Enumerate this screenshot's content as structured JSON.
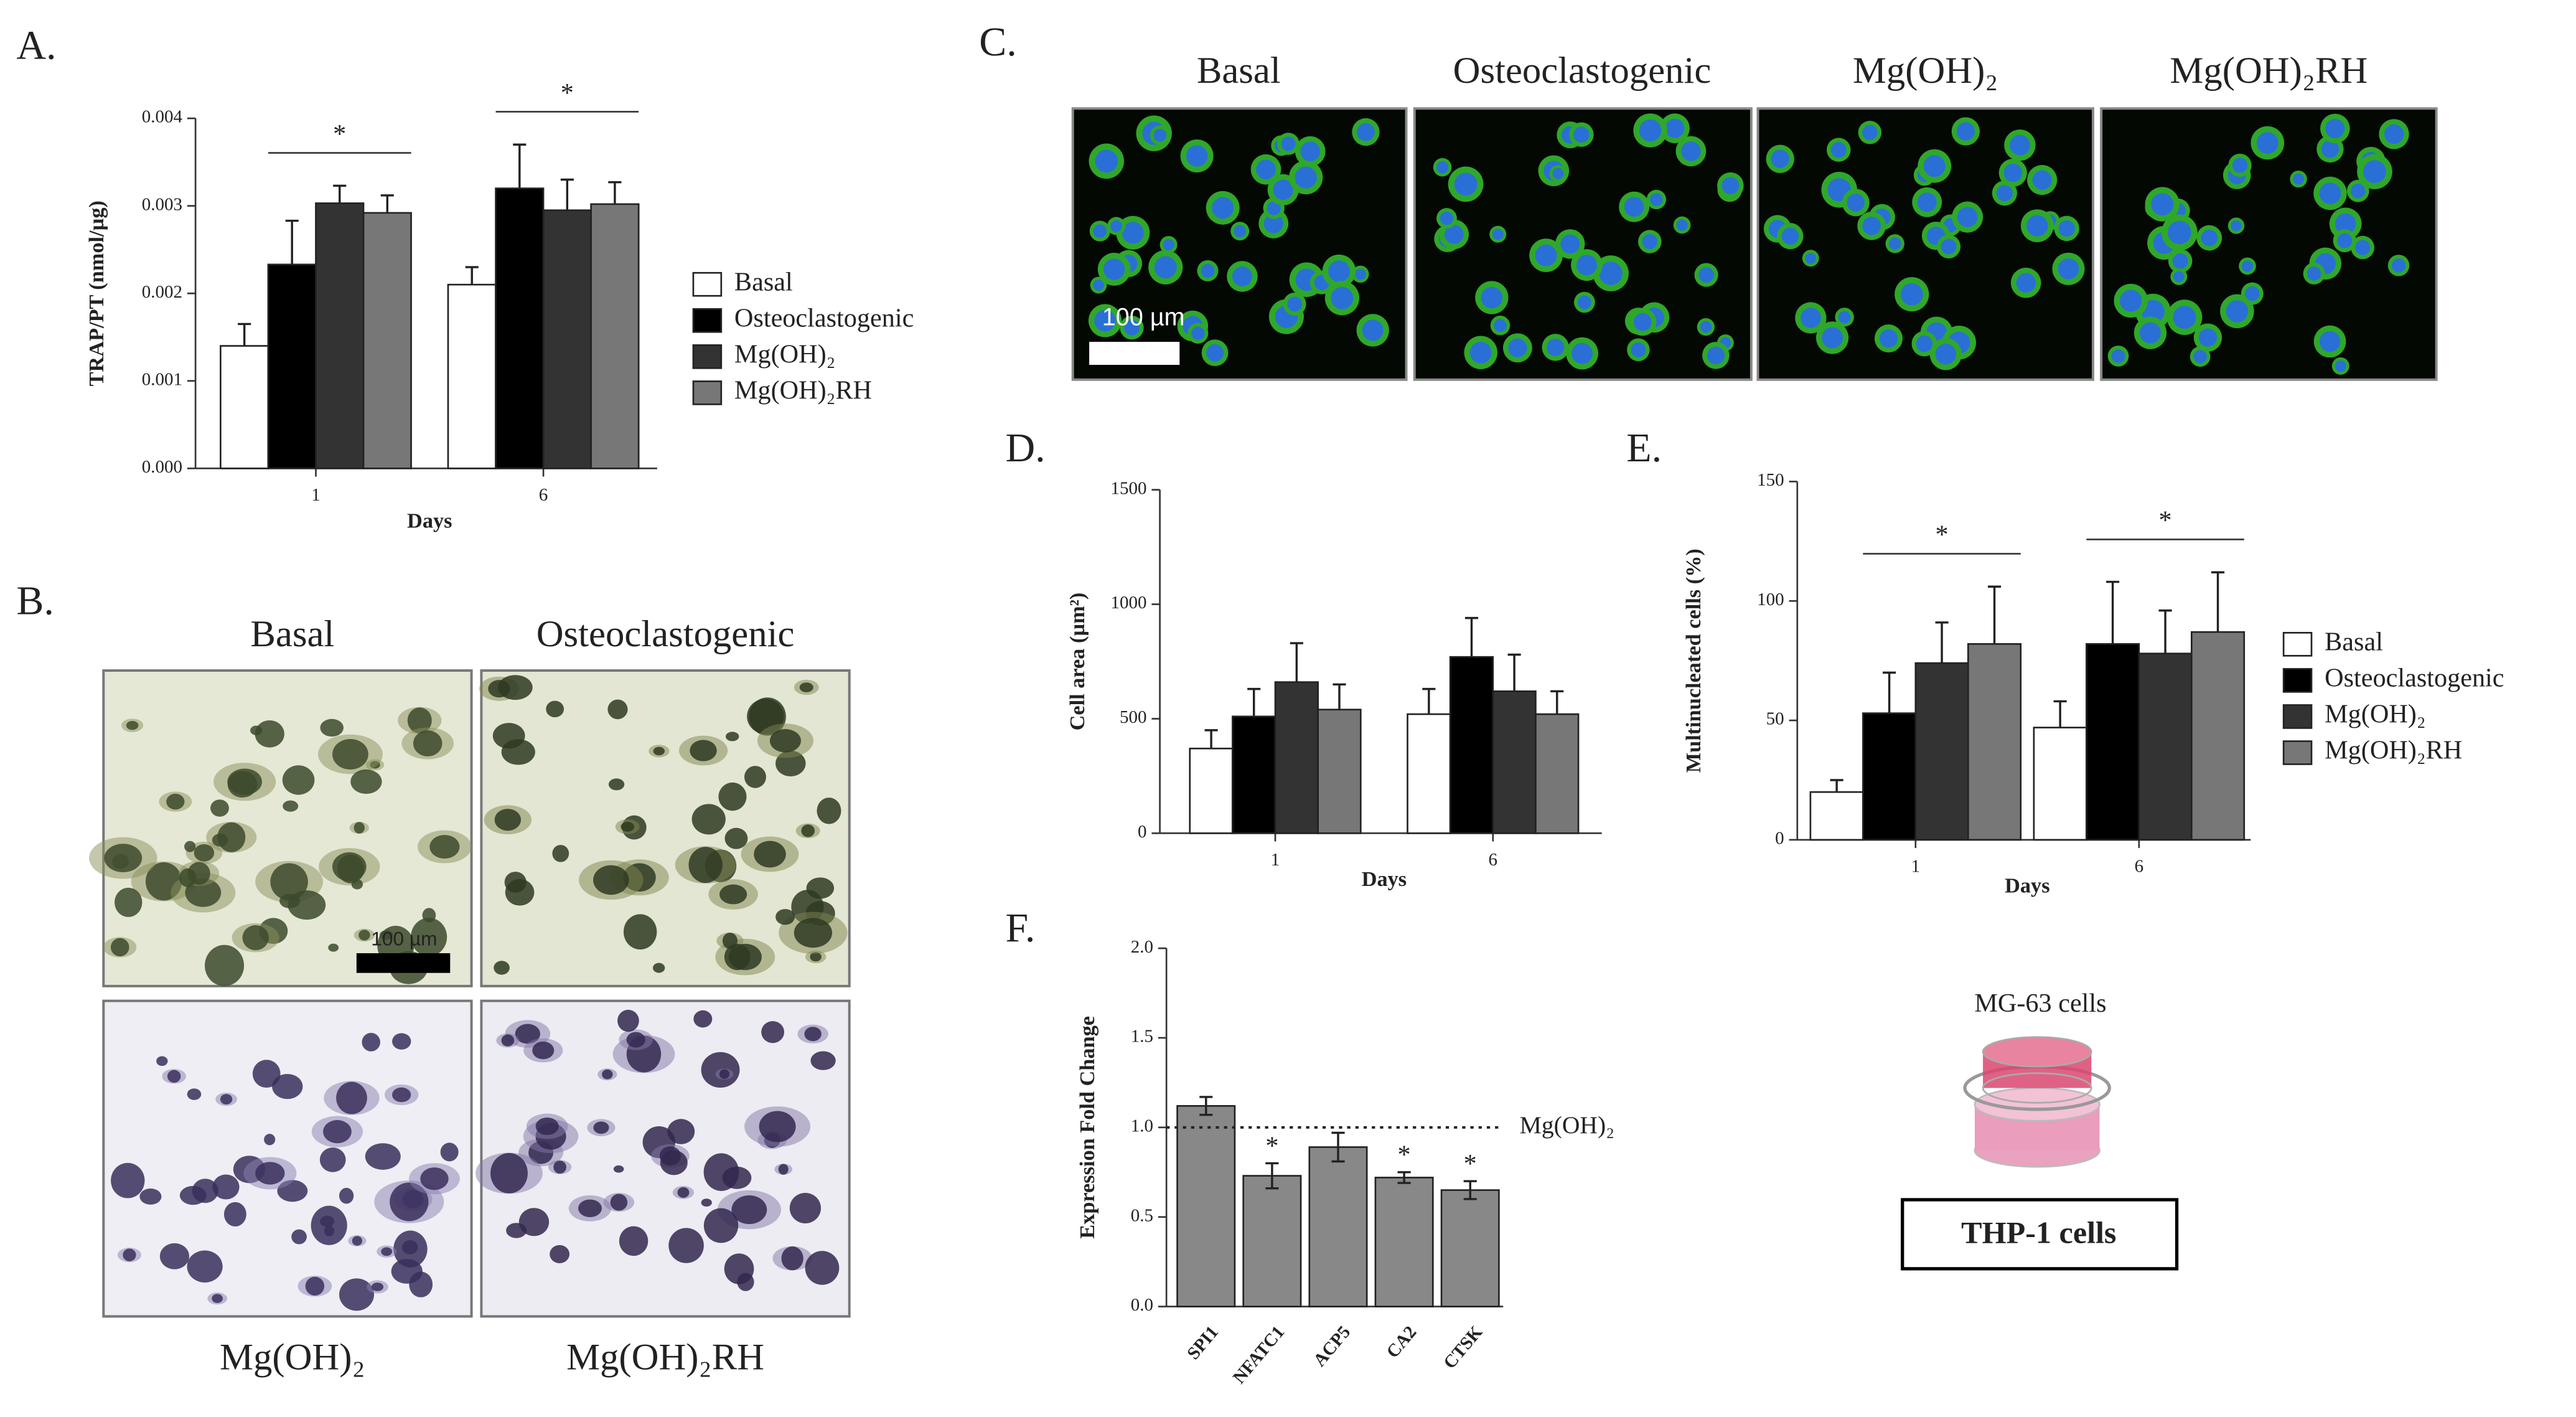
{
  "chart_data": [
    {
      "type": "bar",
      "label": "A.",
      "ylabel": "TRAP/PT (nmol/µg)",
      "xlabel": "Days",
      "categories": [
        "1",
        "6"
      ],
      "series": [
        {
          "name": "Basal",
          "color": "#ffffff",
          "values": [
            0.0014,
            0.0021
          ],
          "errors": [
            0.00025,
            0.0002
          ]
        },
        {
          "name": "Osteoclastogenic",
          "color": "#000000",
          "values": [
            0.00233,
            0.0032
          ],
          "errors": [
            0.0005,
            0.0005
          ]
        },
        {
          "name": "Mg(OH)₂",
          "color": "#333333",
          "values": [
            0.00303,
            0.00295
          ],
          "errors": [
            0.0002,
            0.00035
          ]
        },
        {
          "name": "Mg(OH)₂RH",
          "color": "#777777",
          "values": [
            0.00292,
            0.00302
          ],
          "errors": [
            0.0002,
            0.00025
          ]
        }
      ],
      "error_bars": "upper",
      "ylim": [
        0,
        0.004
      ],
      "yticks": [
        {
          "value": 0,
          "label": "0.000"
        },
        {
          "value": 0.001,
          "label": "0.001"
        },
        {
          "value": 0.002,
          "label": "0.002"
        },
        {
          "value": 0.003,
          "label": "0.003"
        },
        {
          "value": 0.004,
          "label": "0.004"
        }
      ],
      "annotations": [
        {
          "text": "*",
          "category": "1"
        },
        {
          "text": "*",
          "category": "6"
        }
      ]
    },
    {
      "type": "bar",
      "label": "D.",
      "ylabel": "Cell area (µm²)",
      "xlabel": "Days",
      "categories": [
        "1",
        "6"
      ],
      "series": [
        {
          "color": "#ffffff",
          "values": [
            370,
            520
          ],
          "errors": [
            80,
            110
          ]
        },
        {
          "color": "#000000",
          "values": [
            510,
            770
          ],
          "errors": [
            120,
            170
          ]
        },
        {
          "color": "#333333",
          "values": [
            660,
            620
          ],
          "errors": [
            170,
            160
          ]
        },
        {
          "color": "#777777",
          "values": [
            540,
            520
          ],
          "errors": [
            110,
            100
          ]
        }
      ],
      "error_bars": "upper",
      "ylim": [
        0,
        1500
      ],
      "yticks": [
        0,
        500,
        1000,
        1500
      ]
    },
    {
      "type": "bar",
      "label": "E.",
      "ylabel": "Multinucleated cells (%)",
      "xlabel": "Days",
      "categories": [
        "1",
        "6"
      ],
      "series": [
        {
          "name": "Basal",
          "color": "#ffffff",
          "values": [
            20,
            47
          ],
          "errors": [
            5,
            11
          ]
        },
        {
          "name": "Osteoclastogenic",
          "color": "#000000",
          "values": [
            53,
            82
          ],
          "errors": [
            17,
            26
          ]
        },
        {
          "name": "Mg(OH)₂",
          "color": "#333333",
          "values": [
            74,
            78
          ],
          "errors": [
            17,
            18
          ]
        },
        {
          "name": "Mg(OH)₂RH",
          "color": "#777777",
          "values": [
            82,
            87
          ],
          "errors": [
            24,
            25
          ]
        }
      ],
      "error_bars": "upper",
      "ylim": [
        0,
        150
      ],
      "yticks": [
        0,
        50,
        100,
        150
      ],
      "annotations": [
        {
          "text": "*",
          "category": "1"
        },
        {
          "text": "*",
          "category": "6"
        }
      ]
    },
    {
      "type": "bar",
      "label": "F.",
      "ylabel": "Expression Fold Change",
      "categories": [
        "SPI1",
        "NFATC1",
        "ACP5",
        "CA2",
        "CTSK"
      ],
      "values": [
        1.12,
        0.73,
        0.89,
        0.72,
        0.65
      ],
      "errors": [
        0.05,
        0.07,
        0.08,
        0.03,
        0.05
      ],
      "error_bars": "both",
      "color": "#888888",
      "ylim": [
        0,
        2
      ],
      "yticks": [
        {
          "value": 0,
          "label": "0.0"
        },
        0.5,
        {
          "value": 1,
          "label": "1.0"
        },
        1.5,
        {
          "value": 2,
          "label": "2.0"
        }
      ],
      "reference_line": {
        "value": 1,
        "label": "Mg(OH)₂"
      },
      "annotations": [
        {
          "text": "*",
          "category": "NFATC1"
        },
        {
          "text": "*",
          "category": "CA2"
        },
        {
          "text": "*",
          "category": "CTSK"
        }
      ]
    }
  ],
  "panel_b": {
    "label": "B.",
    "top_titles": [
      "Basal",
      "Osteoclastogenic"
    ],
    "bottom_titles": [
      "Mg(OH)₂",
      "Mg(OH)₂RH"
    ],
    "scale_bar": "100 µm"
  },
  "panel_c": {
    "label": "C.",
    "titles": [
      "Basal",
      "Osteoclastogenic",
      "Mg(OH)₂",
      "Mg(OH)₂RH"
    ],
    "scale_bar": "100 µm"
  },
  "diagram": {
    "top": "MG-63 cells",
    "bottom": "THP-1 cells"
  }
}
